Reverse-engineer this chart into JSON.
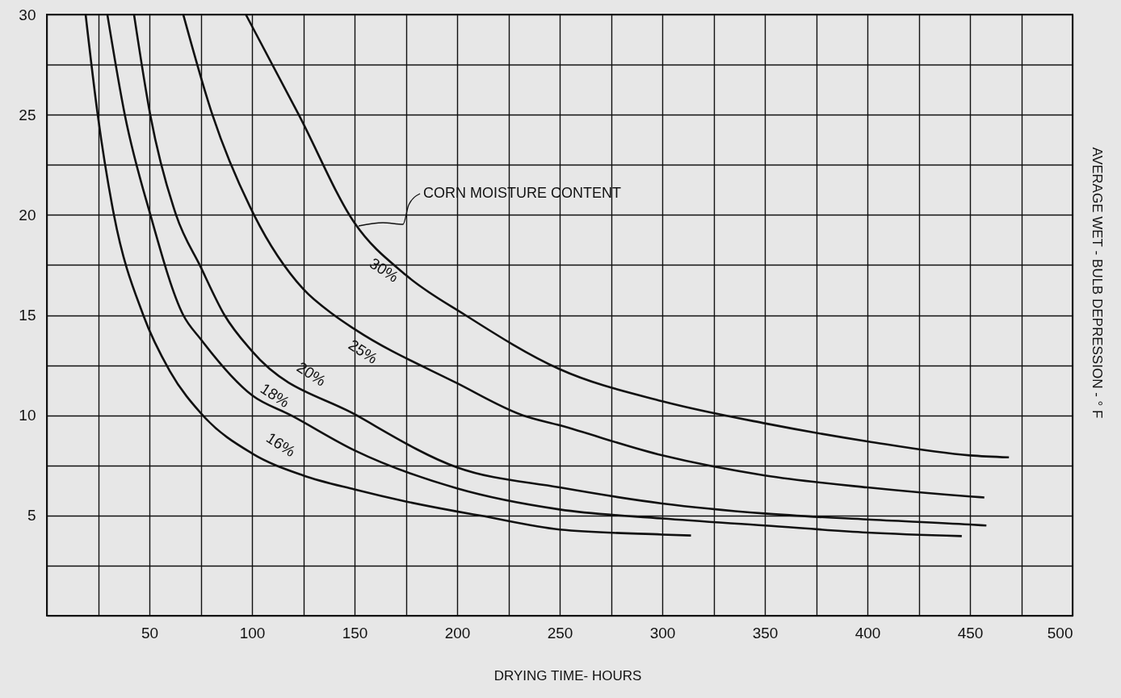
{
  "chart_data": {
    "type": "line",
    "xlabel": "DRYING TIME- HOURS",
    "ylabel": "AVERAGE WET - BULB DEPRESSION - ° F",
    "xlim": [
      0,
      500
    ],
    "ylim": [
      0,
      30
    ],
    "xticks": [
      {
        "value": 0,
        "label": null
      },
      {
        "value": 25,
        "label": null
      },
      50,
      {
        "value": 75,
        "label": null
      },
      100,
      {
        "value": 125,
        "label": null
      },
      150,
      {
        "value": 175,
        "label": null
      },
      200,
      {
        "value": 225,
        "label": null
      },
      250,
      {
        "value": 275,
        "label": null
      },
      300,
      {
        "value": 325,
        "label": null
      },
      350,
      {
        "value": 375,
        "label": null
      },
      400,
      {
        "value": 425,
        "label": null
      },
      450,
      {
        "value": 475,
        "label": null
      },
      500
    ],
    "yticks": [
      {
        "value": 0,
        "label": null
      },
      {
        "value": 2.5,
        "label": null
      },
      5,
      {
        "value": 7.5,
        "label": null
      },
      10,
      {
        "value": 12.5,
        "label": null
      },
      15,
      {
        "value": 17.5,
        "label": null
      },
      20,
      {
        "value": 22.5,
        "label": null
      },
      25,
      {
        "value": 27.5,
        "label": null
      },
      30
    ],
    "grid": true,
    "marker": "none",
    "line_style": "solid",
    "series": [
      {
        "name": "16%",
        "color": "#111111",
        "x": [
          18.9,
          24.8,
          32.7,
          47,
          60,
          76,
          100,
          125,
          150,
          175,
          200,
          211,
          250,
          300,
          314
        ],
        "values": [
          30,
          25,
          20,
          15,
          12.2,
          10,
          8.1,
          7.0,
          6.3,
          5.7,
          5.2,
          5.0,
          4.3,
          4.05,
          4.0
        ]
      },
      {
        "name": "18%",
        "color": "#111111",
        "x": [
          29.5,
          38,
          50.5,
          66.5,
          75,
          100,
          119,
          150,
          200,
          250,
          300,
          350,
          400,
          446
        ],
        "values": [
          30,
          25,
          20,
          15,
          13.8,
          11.0,
          10,
          8.25,
          6.35,
          5.3,
          4.85,
          4.5,
          4.15,
          3.97
        ]
      },
      {
        "name": "20%",
        "color": "#111111",
        "x": [
          42.5,
          50.4,
          63,
          75,
          86.6,
          100,
          151,
          200,
          250,
          300,
          350,
          400,
          450,
          458
        ],
        "values": [
          30,
          25,
          20,
          17.4,
          15,
          13.2,
          10,
          7.4,
          6.4,
          5.6,
          5.1,
          4.8,
          4.55,
          4.5
        ]
      },
      {
        "name": "25%",
        "color": "#111111",
        "x": [
          66.5,
          80.7,
          101,
          125,
          140,
          150,
          200,
          232,
          250,
          300,
          350,
          400,
          450,
          457
        ],
        "values": [
          30,
          25,
          20,
          16.3,
          15,
          14.3,
          11.6,
          10,
          9.5,
          8.0,
          7.0,
          6.4,
          5.95,
          5.9
        ]
      },
      {
        "name": "30%",
        "color": "#111111",
        "x": [
          97,
          122.8,
          150,
          175,
          204,
          250,
          300,
          350,
          400,
          450,
          469
        ],
        "values": [
          30,
          25,
          19.6,
          17.0,
          15,
          12.3,
          10.7,
          9.6,
          8.7,
          8.0,
          7.9
        ]
      }
    ],
    "annotations": [
      {
        "text": "CORN MOISTURE CONTENT",
        "x": 152,
        "y": 19.45
      }
    ]
  }
}
